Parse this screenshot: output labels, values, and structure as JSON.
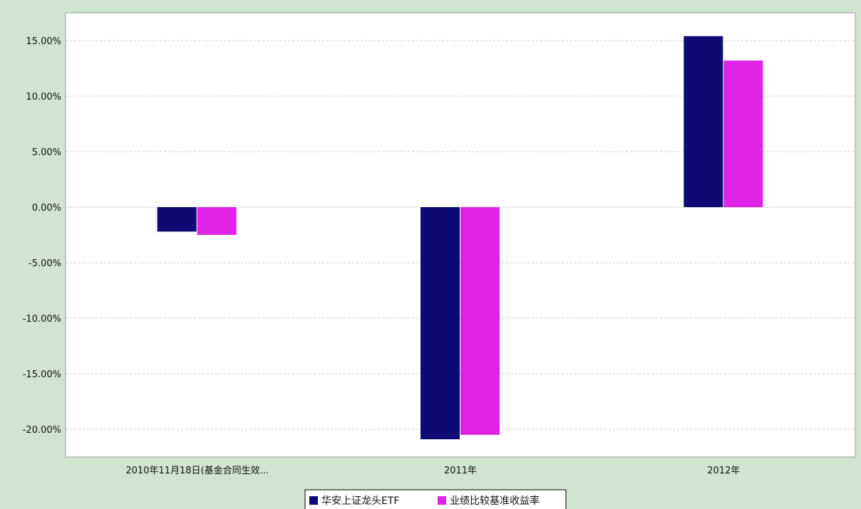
{
  "colors": {
    "background": "#cfe5d0",
    "plot_bg": "#ffffff",
    "series1": "#0e0a73",
    "series2": "#e024e6",
    "grid": "#cccccc"
  },
  "chart_data": {
    "type": "bar",
    "title": "",
    "xlabel": "",
    "ylabel": "",
    "categories": [
      "2010年11月18日(基金合同生效...",
      "2011年",
      "2012年"
    ],
    "series": [
      {
        "name": "华安上证龙头ETF",
        "values": [
          -2.2,
          -20.9,
          15.4
        ]
      },
      {
        "name": "业绩比较基准收益率",
        "values": [
          -2.5,
          -20.5,
          13.2
        ]
      }
    ],
    "ylim": [
      -22.5,
      17.5
    ],
    "yticks": [
      15,
      10,
      5,
      0,
      -5,
      -10,
      -15,
      -20
    ],
    "ytick_labels": [
      "15.00%",
      "10.00%",
      "5.00%",
      "0.00%",
      "-5.00%",
      "-10.00%",
      "-15.00%",
      "-20.00%"
    ],
    "grid": true,
    "legend_position": "bottom-center"
  }
}
